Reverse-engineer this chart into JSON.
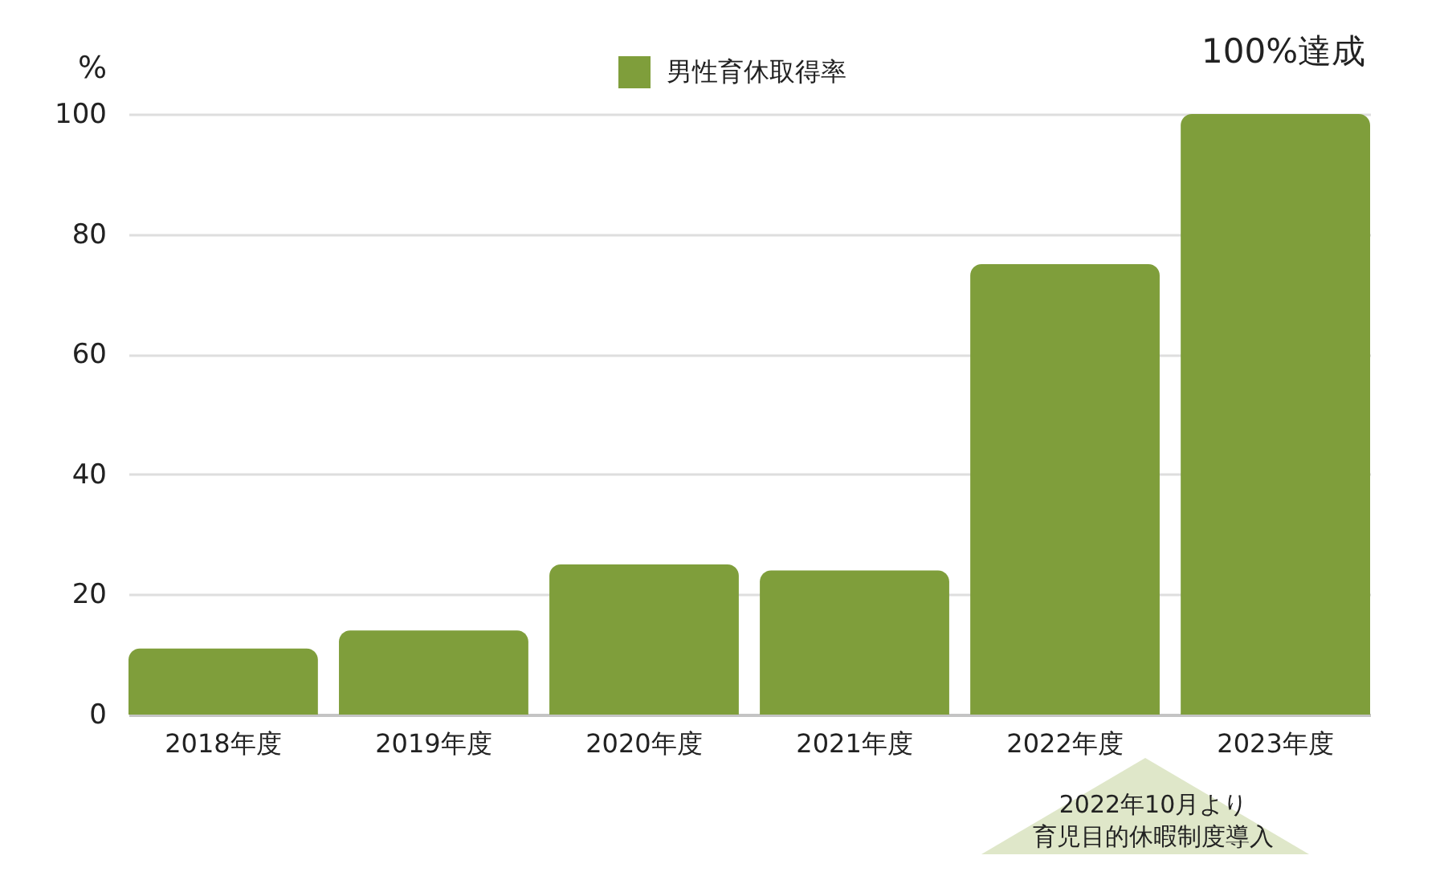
{
  "chart_data": {
    "type": "bar",
    "ylabel": "%",
    "categories": [
      "2018年度",
      "2019年度",
      "2020年度",
      "2021年度",
      "2022年度",
      "2023年度"
    ],
    "series": [
      {
        "name": "男性育休取得率",
        "color": "#7f9e3b",
        "values": [
          11,
          14,
          25,
          24,
          75,
          100
        ]
      }
    ],
    "ylim": [
      0,
      100
    ],
    "yticks": [
      0,
      20,
      40,
      60,
      80,
      100
    ],
    "grid": "y",
    "legend": "top",
    "annotations": [
      {
        "text": "100%達成",
        "x": "2023年度",
        "y": 100
      },
      "2022年10月より",
      "育児目的休暇制度導入"
    ]
  }
}
